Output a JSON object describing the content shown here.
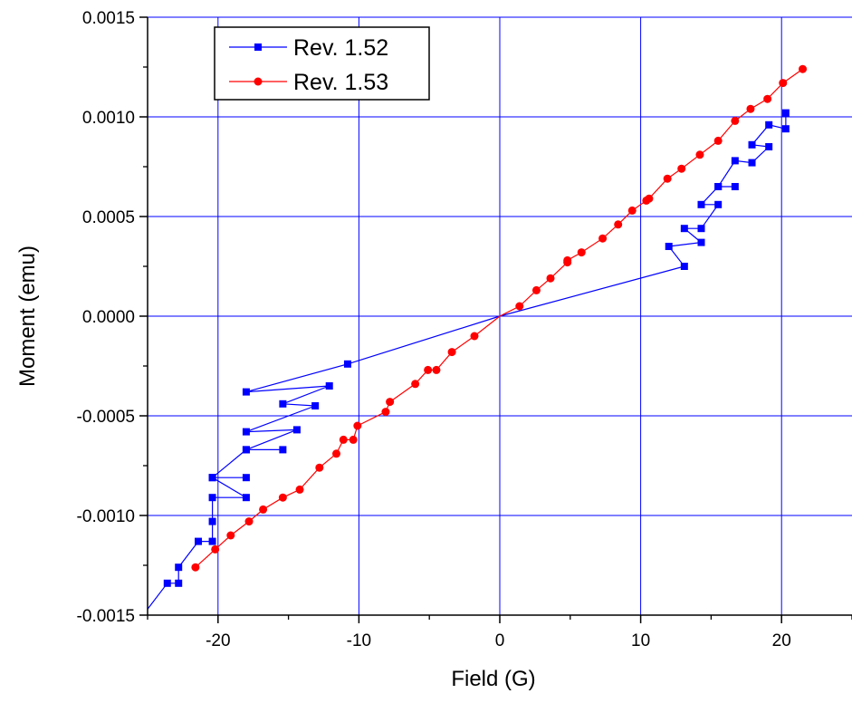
{
  "chart_data": {
    "type": "scatter",
    "xlabel": "Field (G)",
    "ylabel": "Moment (emu)",
    "xlim": [
      -25,
      25
    ],
    "ylim": [
      -0.0015,
      0.0015
    ],
    "x_ticks": [
      -20,
      -10,
      0,
      10,
      20
    ],
    "x_tick_labels": [
      "-20",
      "-10",
      "0",
      "10",
      "20"
    ],
    "y_ticks": [
      -0.0015,
      -0.001,
      -0.0005,
      0.0,
      0.0005,
      0.001,
      0.0015
    ],
    "y_tick_labels": [
      "-0.0015",
      "-0.0010",
      "-0.0005",
      "0.0000",
      "0.0005",
      "0.0010",
      "0.0015"
    ],
    "grid": true,
    "legend_position": "top-left",
    "series": [
      {
        "name": "Rev. 1.52",
        "color": "#0000ff",
        "marker": "square",
        "x": [
          -25,
          -23.6,
          -22.8,
          -22.8,
          -21.4,
          -20.4,
          -20.4,
          -20.4,
          -18.0,
          -20.4,
          -18.0,
          -20.4,
          -18.0,
          -15.4,
          -18.0,
          -14.4,
          -18.0,
          -13.1,
          -15.4,
          -12.1,
          -18.0,
          -10.8,
          0,
          13.1,
          12.0,
          14.3,
          13.1,
          14.3,
          15.5,
          14.3,
          15.5,
          16.7,
          15.5,
          16.7,
          17.9,
          19.1,
          17.9,
          19.1,
          20.3,
          20.3
        ],
        "y": [
          -0.00147,
          -0.00134,
          -0.00134,
          -0.00126,
          -0.00113,
          -0.00113,
          -0.00103,
          -0.00091,
          -0.00091,
          -0.00081,
          -0.00081,
          -0.00081,
          -0.00067,
          -0.00067,
          -0.00067,
          -0.00057,
          -0.00058,
          -0.00045,
          -0.00044,
          -0.00035,
          -0.00038,
          -0.00024,
          0.0,
          0.00025,
          0.00035,
          0.00037,
          0.00044,
          0.00044,
          0.00056,
          0.00056,
          0.00065,
          0.00065,
          0.00065,
          0.00078,
          0.00077,
          0.00085,
          0.00086,
          0.00096,
          0.00094,
          0.00102
        ],
        "markers": [
          false,
          true,
          true,
          true,
          true,
          true,
          true,
          true,
          true,
          true,
          true,
          true,
          true,
          true,
          true,
          true,
          true,
          true,
          true,
          true,
          true,
          true,
          false,
          true,
          true,
          true,
          true,
          true,
          true,
          true,
          true,
          true,
          true,
          true,
          true,
          true,
          true,
          true,
          true,
          true
        ]
      },
      {
        "name": "Rev. 1.53",
        "color": "#ff0000",
        "marker": "circle",
        "x": [
          -21.6,
          -20.2,
          -19.1,
          -17.8,
          -16.8,
          -15.4,
          -14.2,
          -12.8,
          -11.6,
          -11.1,
          -10.4,
          -10.1,
          -8.1,
          -7.8,
          -6.0,
          -5.1,
          -4.5,
          -3.4,
          -1.8,
          0.0,
          1.4,
          2.6,
          3.6,
          4.8,
          4.8,
          5.8,
          7.3,
          8.4,
          9.4,
          10.4,
          10.6,
          11.9,
          12.9,
          14.2,
          15.5,
          16.7,
          17.8,
          19.0,
          20.1,
          21.5
        ],
        "y": [
          -0.00126,
          -0.00117,
          -0.0011,
          -0.00103,
          -0.00097,
          -0.00091,
          -0.00087,
          -0.00076,
          -0.00069,
          -0.00062,
          -0.00062,
          -0.00055,
          -0.00048,
          -0.00043,
          -0.00034,
          -0.00027,
          -0.00027,
          -0.00018,
          -0.0001,
          0.0,
          5e-05,
          0.00013,
          0.00019,
          0.00027,
          0.00028,
          0.00032,
          0.00039,
          0.00046,
          0.00053,
          0.00058,
          0.00059,
          0.00069,
          0.00074,
          0.00081,
          0.00088,
          0.00098,
          0.00104,
          0.00109,
          0.00117,
          0.00124
        ],
        "markers": [
          true,
          true,
          true,
          true,
          true,
          true,
          true,
          true,
          true,
          true,
          true,
          true,
          true,
          true,
          true,
          true,
          true,
          true,
          true,
          false,
          true,
          true,
          true,
          true,
          true,
          true,
          true,
          true,
          true,
          true,
          true,
          true,
          true,
          true,
          true,
          true,
          true,
          true,
          true,
          true
        ]
      }
    ]
  }
}
